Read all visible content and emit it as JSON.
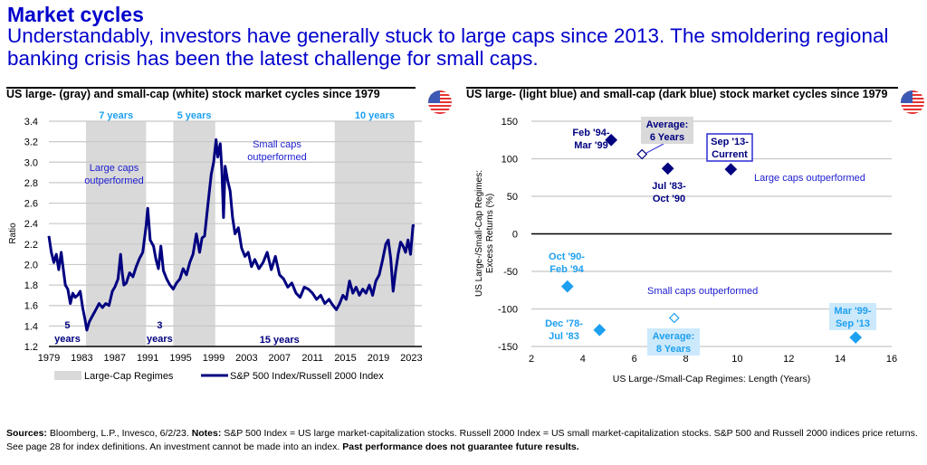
{
  "header": {
    "title": "Market cycles",
    "subtitle": "Understandably, investors have generally stuck to large caps since 2013. The smoldering regional banking crisis has been the latest challenge for small caps."
  },
  "left_panel": {
    "title": "US large- (gray) and small-cap (white) stock market cycles since 1979",
    "flag_icon": "us-flag-icon"
  },
  "right_panel": {
    "title": "US large- (light blue) and small-cap (dark blue) stock market cycles since 1979",
    "flag_icon": "us-flag-icon"
  },
  "colors": {
    "title_blue": "#0000cc",
    "line_navy": "#000080",
    "regime_gray": "#d9d9d9",
    "light_blue": "#1ea0f0",
    "label_box_light": "#cce9fb",
    "dark_marker": "#000080"
  },
  "chart_data": [
    {
      "type": "line",
      "title": "US large- (gray) and small-cap (white) stock market cycles since 1979",
      "xlabel": "",
      "ylabel": "Ratio",
      "xlim": [
        1979,
        2023.4
      ],
      "ylim": [
        1.2,
        3.4
      ],
      "x_ticks": [
        "1979",
        "1983",
        "1987",
        "1991",
        "1995",
        "1999",
        "2003",
        "2007",
        "2011",
        "2015",
        "2019",
        "2023"
      ],
      "y_ticks": [
        "1.2",
        "1.4",
        "1.6",
        "1.8",
        "2.0",
        "2.2",
        "2.4",
        "2.6",
        "2.8",
        "3.0",
        "3.2",
        "3.4"
      ],
      "grid": true,
      "legend": {
        "placement": "bottom",
        "entries": [
          "Large-Cap Regimes",
          "S&P 500 Index/Russell 2000 Index"
        ]
      },
      "regimes": [
        {
          "start": 1983.5,
          "end": 1990.8,
          "label": "7 years",
          "shaded": true
        },
        {
          "start": 1994.1,
          "end": 1999.2,
          "label": "5 years",
          "shaded": true
        },
        {
          "start": 2013.7,
          "end": 2023.4,
          "label": "10 years",
          "shaded": true
        },
        {
          "start": 1979.0,
          "end": 1983.5,
          "label": "5 years",
          "shaded": false
        },
        {
          "start": 1990.8,
          "end": 1994.1,
          "label": "3 years",
          "shaded": false
        },
        {
          "start": 1999.2,
          "end": 2013.7,
          "label": "15 years",
          "shaded": false
        }
      ],
      "annotations": [
        "Large caps outperformed",
        "Small caps outperformed"
      ],
      "series": [
        {
          "name": "S&P 500 Index/Russell 2000 Index",
          "x": [
            1979.0,
            1979.3,
            1979.6,
            1979.9,
            1980.2,
            1980.5,
            1980.8,
            1981.0,
            1981.3,
            1981.6,
            1981.9,
            1982.2,
            1982.5,
            1982.8,
            1983.1,
            1983.4,
            1983.6,
            1983.9,
            1984.3,
            1984.7,
            1985.1,
            1985.5,
            1985.9,
            1986.3,
            1986.7,
            1987.0,
            1987.4,
            1987.7,
            1987.9,
            1988.1,
            1988.4,
            1988.8,
            1989.2,
            1989.6,
            1990.0,
            1990.4,
            1990.8,
            1991.0,
            1991.3,
            1991.7,
            1992.0,
            1992.3,
            1992.6,
            1992.9,
            1993.3,
            1993.7,
            1994.1,
            1994.5,
            1994.9,
            1995.3,
            1995.7,
            1996.1,
            1996.5,
            1996.9,
            1997.3,
            1997.6,
            1997.9,
            1998.3,
            1998.7,
            1999.0,
            1999.3,
            1999.5,
            1999.8,
            2000.0,
            2000.2,
            2000.4,
            2000.7,
            2001.0,
            2001.3,
            2001.6,
            2002.0,
            2002.4,
            2002.8,
            2003.2,
            2003.6,
            2004.0,
            2004.5,
            2005.0,
            2005.5,
            2006.0,
            2006.5,
            2007.0,
            2007.5,
            2008.0,
            2008.5,
            2009.0,
            2009.5,
            2010.0,
            2010.5,
            2011.0,
            2011.5,
            2012.0,
            2012.5,
            2013.0,
            2013.5,
            2013.9,
            2014.3,
            2014.7,
            2015.1,
            2015.5,
            2015.9,
            2016.3,
            2016.7,
            2017.1,
            2017.5,
            2017.9,
            2018.3,
            2018.7,
            2019.1,
            2019.5,
            2019.9,
            2020.2,
            2020.5,
            2020.8,
            2021.1,
            2021.4,
            2021.7,
            2022.0,
            2022.3,
            2022.6,
            2022.9,
            2023.2,
            2023.4
          ],
          "y": [
            2.28,
            2.12,
            2.02,
            2.1,
            1.95,
            2.12,
            1.92,
            1.8,
            1.76,
            1.62,
            1.72,
            1.68,
            1.7,
            1.74,
            1.58,
            1.46,
            1.36,
            1.44,
            1.5,
            1.56,
            1.62,
            1.58,
            1.62,
            1.6,
            1.74,
            1.78,
            1.86,
            2.1,
            1.92,
            1.8,
            1.82,
            1.92,
            1.88,
            1.98,
            2.06,
            2.12,
            2.38,
            2.55,
            2.24,
            2.18,
            2.05,
            1.96,
            2.18,
            1.94,
            1.86,
            1.8,
            1.76,
            1.82,
            1.86,
            1.96,
            1.9,
            2.02,
            2.1,
            2.3,
            2.12,
            2.26,
            2.28,
            2.58,
            2.88,
            3.0,
            3.22,
            3.05,
            3.18,
            2.92,
            2.46,
            2.96,
            2.82,
            2.72,
            2.46,
            2.3,
            2.36,
            2.16,
            2.08,
            2.12,
            1.98,
            2.05,
            1.96,
            2.02,
            2.12,
            1.95,
            2.08,
            1.9,
            1.86,
            1.78,
            1.82,
            1.72,
            1.68,
            1.78,
            1.76,
            1.72,
            1.66,
            1.7,
            1.62,
            1.66,
            1.6,
            1.56,
            1.62,
            1.7,
            1.66,
            1.84,
            1.72,
            1.78,
            1.7,
            1.76,
            1.72,
            1.8,
            1.7,
            1.84,
            1.9,
            2.04,
            2.2,
            2.24,
            2.06,
            1.74,
            1.94,
            2.1,
            2.22,
            2.18,
            2.12,
            2.24,
            2.1,
            2.38,
            2.38
          ]
        }
      ]
    },
    {
      "type": "scatter",
      "title": "US large- (light blue) and small-cap (dark blue) stock market cycles since 1979",
      "xlabel": "US Large-/Small-Cap Regimes: Length (Years)",
      "ylabel": "US Large-/Small-Cap Regimes: Excess Returns (%)",
      "xlim": [
        2,
        16
      ],
      "ylim": [
        -150,
        150
      ],
      "x_ticks": [
        "2",
        "4",
        "6",
        "8",
        "10",
        "12",
        "14",
        "16"
      ],
      "y_ticks": [
        "-150",
        "-100",
        "-50",
        "0",
        "50",
        "100",
        "150"
      ],
      "grid": true,
      "annotations": [
        "Large caps outperformed",
        "Small caps outperformed"
      ],
      "series": [
        {
          "name": "Large caps outperformed",
          "color": "#000080",
          "points": [
            {
              "label": "Feb '94-Mar '99",
              "x": 5.1,
              "y": 125
            },
            {
              "label": "Jul '83-Oct '90",
              "x": 7.3,
              "y": 87
            },
            {
              "label": "Sep '13-Current",
              "x": 9.75,
              "y": 86
            }
          ]
        },
        {
          "name": "Small caps outperformed",
          "color": "#1ea0f0",
          "points": [
            {
              "label": "Oct '90-Feb '94",
              "x": 3.4,
              "y": -70
            },
            {
              "label": "Dec '78-Jul '83",
              "x": 4.65,
              "y": -128
            },
            {
              "label": "Mar '99-Sep '13",
              "x": 14.6,
              "y": -138
            }
          ]
        },
        {
          "name": "Averages",
          "points": [
            {
              "label": "Average: 6 Years",
              "x": 6.3,
              "y": 106,
              "hollow": true,
              "color": "#000080"
            },
            {
              "label": "Average: 8 Years",
              "x": 7.55,
              "y": -112,
              "hollow": true,
              "color": "#1ea0f0"
            }
          ]
        }
      ]
    }
  ],
  "footer": {
    "sources_label": "Sources:",
    "sources_text": " Bloomberg, L.P., Invesco, 6/2/23. ",
    "notes_label": "Notes:",
    "notes_text": " S&P 500 Index = US large market-capitalization stocks. Russell 2000 Index = US small market-capitalization stocks. S&P 500 and Russell 2000 indices price returns. See page 28 for index definitions. An investment cannot be made into an index. ",
    "disclaimer": "Past performance does not guarantee future results."
  }
}
